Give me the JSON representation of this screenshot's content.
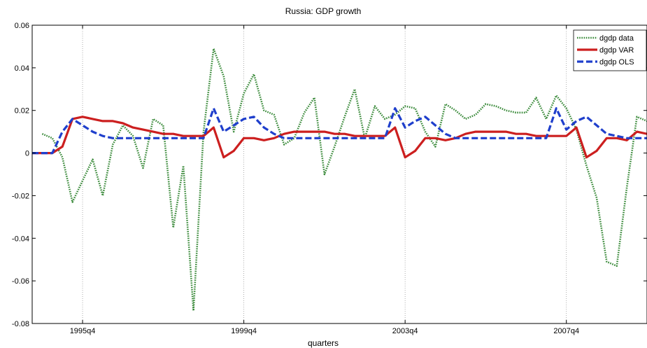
{
  "chart_data": {
    "type": "line",
    "title": "Russia: GDP growth",
    "xlabel": "quarters",
    "ylabel": "",
    "ylim": [
      -0.08,
      0.06
    ],
    "yticks": [
      -0.08,
      -0.06,
      -0.04,
      -0.02,
      0,
      0.02,
      0.04,
      0.06
    ],
    "ytick_labels": [
      "-0.08",
      "-0.06",
      "-0.04",
      "-0.02",
      "0",
      "0.02",
      "0.04",
      "0.06"
    ],
    "xlim": [
      1994.5,
      2009.75
    ],
    "xticks": [
      1995.75,
      1999.75,
      2003.75,
      2007.75
    ],
    "xtick_labels": [
      "1995q4",
      "1999q4",
      "2003q4",
      "2007q4"
    ],
    "grid": "x-only",
    "legend_position": "top-right",
    "series": [
      {
        "name": "dgdp data",
        "color": "#3a8a3a",
        "style": "dotted",
        "x": [
          1994.75,
          1995.0,
          1995.25,
          1995.5,
          1995.75,
          1996.0,
          1996.25,
          1996.5,
          1996.75,
          1997.0,
          1997.25,
          1997.5,
          1997.75,
          1998.0,
          1998.25,
          1998.5,
          1998.75,
          1999.0,
          1999.25,
          1999.5,
          1999.75,
          2000.0,
          2000.25,
          2000.5,
          2000.75,
          2001.0,
          2001.25,
          2001.5,
          2001.75,
          2002.0,
          2002.25,
          2002.5,
          2002.75,
          2003.0,
          2003.25,
          2003.5,
          2003.75,
          2004.0,
          2004.25,
          2004.5,
          2004.75,
          2005.0,
          2005.25,
          2005.5,
          2005.75,
          2006.0,
          2006.25,
          2006.5,
          2006.75,
          2007.0,
          2007.25,
          2007.5,
          2007.75,
          2008.0,
          2008.25,
          2008.5,
          2008.75,
          2009.0,
          2009.25,
          2009.5,
          2009.75
        ],
        "values": [
          0.009,
          0.007,
          -0.002,
          -0.023,
          -0.013,
          -0.003,
          -0.02,
          0.004,
          0.013,
          0.008,
          -0.007,
          0.016,
          0.013,
          -0.035,
          -0.006,
          -0.074,
          0.01,
          0.049,
          0.036,
          0.01,
          0.028,
          0.037,
          0.02,
          0.018,
          0.004,
          0.007,
          0.019,
          0.026,
          -0.01,
          0.003,
          0.017,
          0.03,
          0.007,
          0.022,
          0.016,
          0.018,
          0.022,
          0.021,
          0.01,
          0.003,
          0.023,
          0.02,
          0.016,
          0.018,
          0.023,
          0.022,
          0.02,
          0.019,
          0.019,
          0.026,
          0.016,
          0.027,
          0.021,
          0.011,
          -0.006,
          -0.021,
          -0.051,
          -0.053,
          -0.016,
          0.017,
          0.015
        ]
      },
      {
        "name": "dgdp VAR",
        "color": "#cc1f1f",
        "style": "solid",
        "x": [
          1994.5,
          1995.0,
          1995.25,
          1995.5,
          1995.75,
          1996.0,
          1996.25,
          1996.5,
          1996.75,
          1997.0,
          1997.25,
          1997.5,
          1997.75,
          1998.0,
          1998.25,
          1998.5,
          1998.75,
          1999.0,
          1999.25,
          1999.5,
          1999.75,
          2000.0,
          2000.25,
          2000.5,
          2000.75,
          2001.0,
          2001.25,
          2001.5,
          2001.75,
          2002.0,
          2002.25,
          2002.5,
          2002.75,
          2003.0,
          2003.25,
          2003.5,
          2003.75,
          2004.0,
          2004.25,
          2004.5,
          2004.75,
          2005.0,
          2005.25,
          2005.5,
          2005.75,
          2006.0,
          2006.25,
          2006.5,
          2006.75,
          2007.0,
          2007.25,
          2007.5,
          2007.75,
          2008.0,
          2008.25,
          2008.5,
          2008.75,
          2009.0,
          2009.25,
          2009.5,
          2009.75
        ],
        "values": [
          0.0,
          0.0,
          0.003,
          0.016,
          0.017,
          0.016,
          0.015,
          0.015,
          0.014,
          0.012,
          0.011,
          0.01,
          0.009,
          0.009,
          0.008,
          0.008,
          0.008,
          0.012,
          -0.002,
          0.001,
          0.007,
          0.007,
          0.006,
          0.007,
          0.009,
          0.01,
          0.01,
          0.01,
          0.01,
          0.009,
          0.009,
          0.008,
          0.008,
          0.008,
          0.008,
          0.012,
          -0.002,
          0.001,
          0.007,
          0.007,
          0.006,
          0.007,
          0.009,
          0.01,
          0.01,
          0.01,
          0.01,
          0.009,
          0.009,
          0.008,
          0.008,
          0.008,
          0.008,
          0.012,
          -0.002,
          0.001,
          0.007,
          0.007,
          0.006,
          0.01,
          0.009
        ]
      },
      {
        "name": "dgdp OLS",
        "color": "#1f3fcc",
        "style": "dashed",
        "x": [
          1994.5,
          1995.0,
          1995.25,
          1995.5,
          1995.75,
          1996.0,
          1996.25,
          1996.5,
          1996.75,
          1997.0,
          1997.25,
          1997.5,
          1997.75,
          1998.0,
          1998.25,
          1998.5,
          1998.75,
          1999.0,
          1999.25,
          1999.5,
          1999.75,
          2000.0,
          2000.25,
          2000.5,
          2000.75,
          2001.0,
          2001.25,
          2001.5,
          2001.75,
          2002.0,
          2002.25,
          2002.5,
          2002.75,
          2003.0,
          2003.25,
          2003.5,
          2003.75,
          2004.0,
          2004.25,
          2004.5,
          2004.75,
          2005.0,
          2005.25,
          2005.5,
          2005.75,
          2006.0,
          2006.25,
          2006.5,
          2006.75,
          2007.0,
          2007.25,
          2007.5,
          2007.75,
          2008.0,
          2008.25,
          2008.5,
          2008.75,
          2009.0,
          2009.25,
          2009.5,
          2009.75
        ],
        "values": [
          0.0,
          0.0,
          0.01,
          0.016,
          0.013,
          0.01,
          0.008,
          0.007,
          0.007,
          0.007,
          0.007,
          0.007,
          0.007,
          0.007,
          0.007,
          0.007,
          0.007,
          0.021,
          0.01,
          0.013,
          0.016,
          0.017,
          0.012,
          0.009,
          0.007,
          0.007,
          0.007,
          0.007,
          0.007,
          0.007,
          0.007,
          0.007,
          0.007,
          0.007,
          0.007,
          0.021,
          0.012,
          0.015,
          0.017,
          0.013,
          0.009,
          0.007,
          0.007,
          0.007,
          0.007,
          0.007,
          0.007,
          0.007,
          0.007,
          0.007,
          0.007,
          0.021,
          0.011,
          0.015,
          0.017,
          0.013,
          0.009,
          0.008,
          0.007,
          0.007,
          0.007
        ]
      }
    ]
  }
}
